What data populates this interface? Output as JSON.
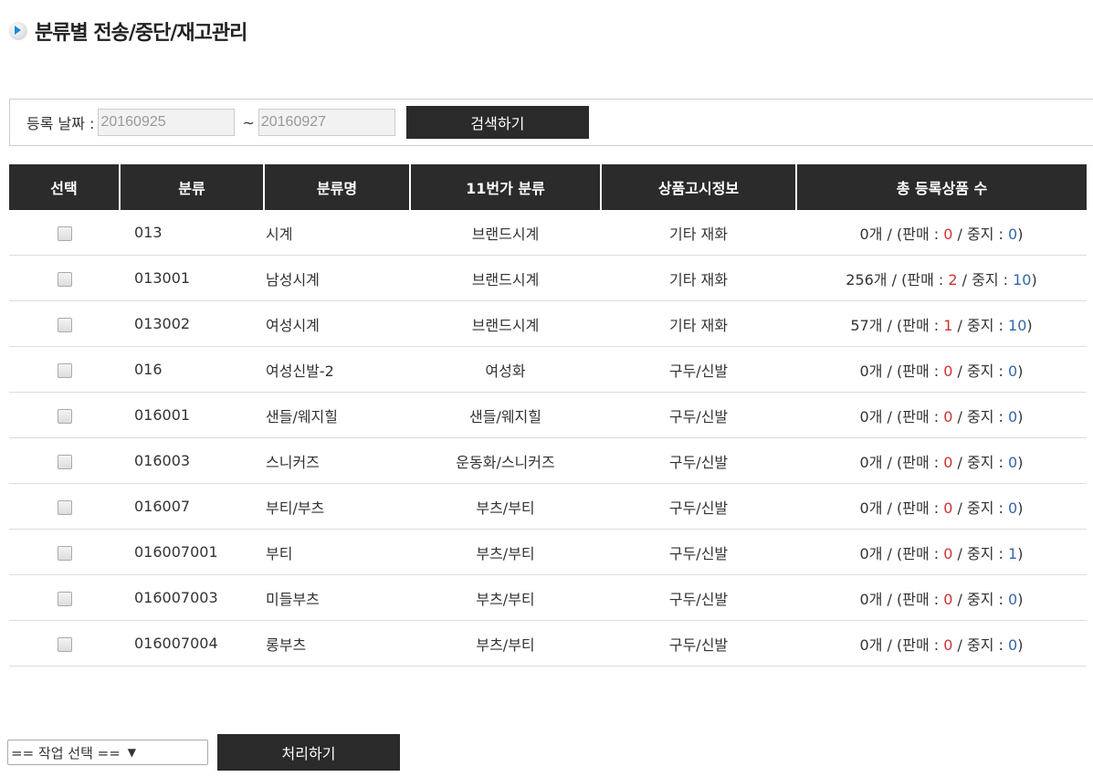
{
  "title": "분류별 전송/중단/재고관리",
  "search": {
    "label": "등록 날짜 :",
    "from": "20160925",
    "sep": "~",
    "to": "20160927",
    "button": "검색하기"
  },
  "table": {
    "headers": [
      "선택",
      "분류",
      "분류명",
      "11번가 분류",
      "상품고시정보",
      "총 등록상품 수"
    ],
    "rows": [
      {
        "code": "013",
        "name": "시계",
        "st_cat": "브랜드시계",
        "notice": "기타 재화",
        "total": "0개",
        "sale": "0",
        "stop": "0"
      },
      {
        "code": "013001",
        "name": "남성시계",
        "st_cat": "브랜드시계",
        "notice": "기타 재화",
        "total": "256개",
        "sale": "2",
        "stop": "10"
      },
      {
        "code": "013002",
        "name": "여성시계",
        "st_cat": "브랜드시계",
        "notice": "기타 재화",
        "total": "57개",
        "sale": "1",
        "stop": "10"
      },
      {
        "code": "016",
        "name": "여성신발-2",
        "st_cat": "여성화",
        "notice": "구두/신발",
        "total": "0개",
        "sale": "0",
        "stop": "0"
      },
      {
        "code": "016001",
        "name": "샌들/웨지힐",
        "st_cat": "샌들/웨지힐",
        "notice": "구두/신발",
        "total": "0개",
        "sale": "0",
        "stop": "0"
      },
      {
        "code": "016003",
        "name": "스니커즈",
        "st_cat": "운동화/스니커즈",
        "notice": "구두/신발",
        "total": "0개",
        "sale": "0",
        "stop": "0"
      },
      {
        "code": "016007",
        "name": "부티/부츠",
        "st_cat": "부츠/부티",
        "notice": "구두/신발",
        "total": "0개",
        "sale": "0",
        "stop": "0"
      },
      {
        "code": "016007001",
        "name": "부티",
        "st_cat": "부츠/부티",
        "notice": "구두/신발",
        "total": "0개",
        "sale": "0",
        "stop": "1"
      },
      {
        "code": "016007003",
        "name": "미들부츠",
        "st_cat": "부츠/부티",
        "notice": "구두/신발",
        "total": "0개",
        "sale": "0",
        "stop": "0"
      },
      {
        "code": "016007004",
        "name": "롱부츠",
        "st_cat": "부츠/부티",
        "notice": "구두/신발",
        "total": "0개",
        "sale": "0",
        "stop": "0"
      }
    ],
    "sale_label": "판매 :",
    "stop_label": "중지 :"
  },
  "bottom": {
    "select": "== 작업 선택 ==",
    "button": "처리하기"
  },
  "colors": {
    "header_bg": "#2b2b2b",
    "sale": "#cc3333",
    "stop": "#3366aa"
  }
}
